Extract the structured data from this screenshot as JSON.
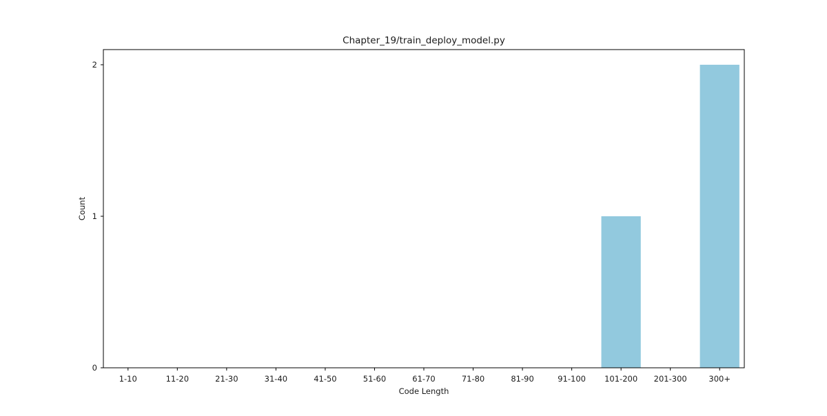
{
  "chart_data": {
    "type": "bar",
    "title": "Chapter_19/train_deploy_model.py",
    "xlabel": "Code Length",
    "ylabel": "Count",
    "categories": [
      "1-10",
      "11-20",
      "21-30",
      "31-40",
      "41-50",
      "51-60",
      "61-70",
      "71-80",
      "81-90",
      "91-100",
      "101-200",
      "201-300",
      "300+"
    ],
    "values": [
      0,
      0,
      0,
      0,
      0,
      0,
      0,
      0,
      0,
      0,
      1,
      0,
      2
    ],
    "ylim": [
      0,
      2.1
    ],
    "yticks": [
      0,
      1,
      2
    ],
    "bar_color": "#92c9de",
    "grid": false,
    "legend": "none"
  }
}
